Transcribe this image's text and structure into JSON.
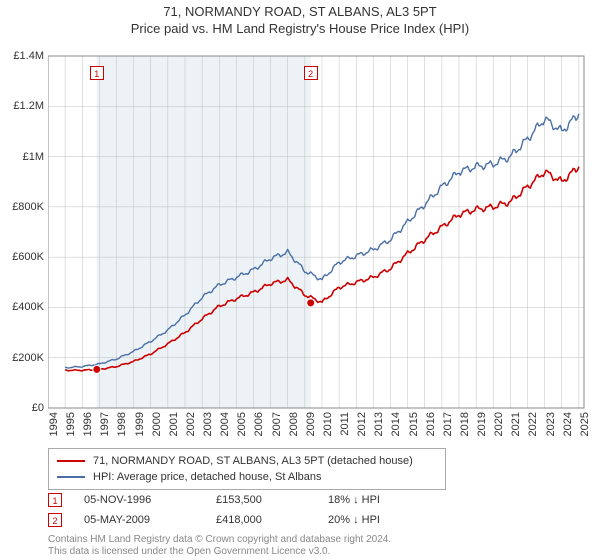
{
  "title_line1": "71, NORMANDY ROAD, ST ALBANS, AL3 5PT",
  "title_line2": "Price paid vs. HM Land Registry's House Price Index (HPI)",
  "chart": {
    "type": "line",
    "background_color": "#ffffff",
    "plot_bg_color": "#ffffff",
    "shaded_bg_color": "#dde8ee",
    "shaded_alpha": 0.55,
    "grid_color": "#bfbfbf",
    "axis_color": "#888888",
    "x_years": [
      1994,
      1995,
      1996,
      1997,
      1998,
      1999,
      2000,
      2001,
      2002,
      2003,
      2004,
      2005,
      2006,
      2007,
      2008,
      2009,
      2010,
      2011,
      2012,
      2013,
      2014,
      2015,
      2016,
      2017,
      2018,
      2019,
      2020,
      2021,
      2022,
      2023,
      2024,
      2025
    ],
    "xlim": [
      1994,
      2025.3
    ],
    "ylim": [
      0,
      1400000
    ],
    "yticks": [
      0,
      200000,
      400000,
      600000,
      800000,
      1000000,
      1200000,
      1400000
    ],
    "ytick_labels": [
      "£0",
      "£200K",
      "£400K",
      "£600K",
      "£800K",
      "£1M",
      "£1.2M",
      "£1.4M"
    ],
    "tick_fontsize": 11,
    "series": [
      {
        "name": "71, NORMANDY ROAD, ST ALBANS, AL3 5PT (detached house)",
        "color": "#cc0000",
        "line_width": 1.6,
        "start_year": 1995,
        "values": [
          150000,
          150000,
          153500,
          165000,
          185000,
          215000,
          255000,
          300000,
          355000,
          405000,
          435000,
          460000,
          495000,
          510000,
          450000,
          420000,
          480000,
          500000,
          520000,
          555000,
          615000,
          670000,
          720000,
          770000,
          790000,
          800000,
          820000,
          880000,
          940000,
          900000,
          960000
        ]
      },
      {
        "name": "HPI: Average price, detached house, St Albans",
        "color": "#4a6fa5",
        "line_width": 1.4,
        "start_year": 1995,
        "values": [
          160000,
          165000,
          175000,
          195000,
          225000,
          265000,
          310000,
          370000,
          440000,
          490000,
          520000,
          550000,
          595000,
          620000,
          545000,
          510000,
          580000,
          605000,
          630000,
          670000,
          740000,
          810000,
          880000,
          940000,
          960000,
          970000,
          1000000,
          1070000,
          1150000,
          1100000,
          1170000
        ]
      }
    ],
    "sale_markers": [
      {
        "n": "1",
        "year": 1996.85,
        "price": 153500
      },
      {
        "n": "2",
        "year": 2009.34,
        "price": 418000
      }
    ],
    "marker_border": "#cc0000",
    "marker_dot_fill": "#cc0000",
    "shaded_ranges": [
      {
        "from": 1996.85,
        "to": 2009.34
      }
    ]
  },
  "legend": {
    "series1": "71, NORMANDY ROAD, ST ALBANS, AL3 5PT (detached house)",
    "series2": "HPI: Average price, detached house, St Albans",
    "color1": "#cc0000",
    "color2": "#4a6fa5"
  },
  "sales": [
    {
      "n": "1",
      "date": "05-NOV-1996",
      "price": "£153,500",
      "delta": "18% ↓ HPI"
    },
    {
      "n": "2",
      "date": "05-MAY-2009",
      "price": "£418,000",
      "delta": "20% ↓ HPI"
    }
  ],
  "license_line1": "Contains HM Land Registry data © Crown copyright and database right 2024.",
  "license_line2": "This data is licensed under the Open Government Licence v3.0."
}
